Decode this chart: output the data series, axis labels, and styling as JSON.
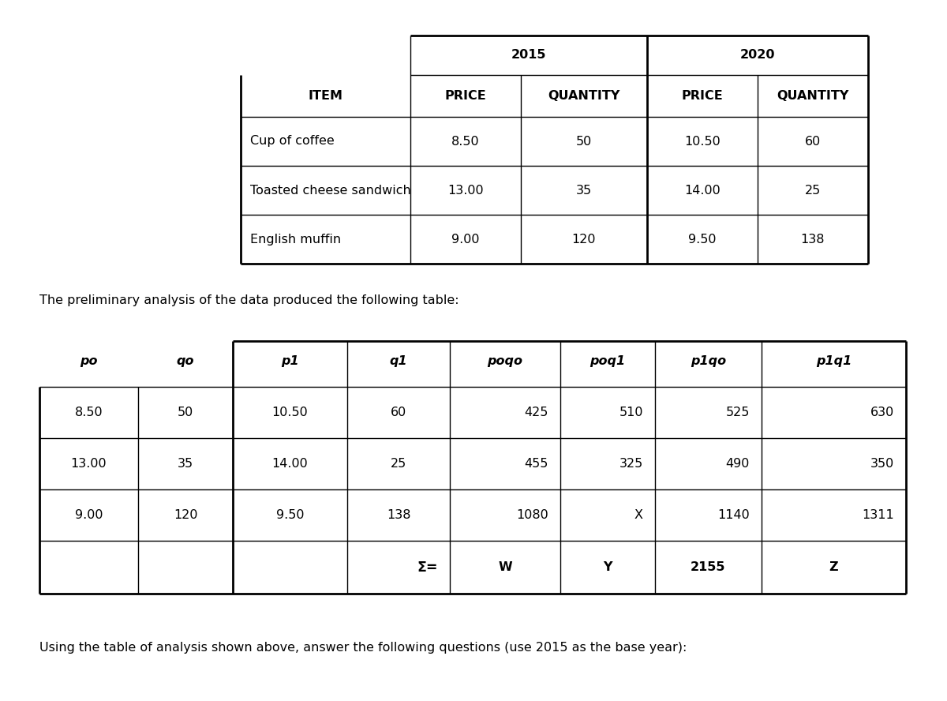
{
  "table1": {
    "year2015": "2015",
    "year2020": "2020",
    "headers": [
      "ITEM",
      "PRICE",
      "QUANTITY",
      "PRICE",
      "QUANTITY"
    ],
    "rows": [
      [
        "Cup of coffee",
        "8.50",
        "50",
        "10.50",
        "60"
      ],
      [
        "Toasted cheese sandwich",
        "13.00",
        "35",
        "14.00",
        "25"
      ],
      [
        "English muffin",
        "9.00",
        "120",
        "9.50",
        "138"
      ]
    ]
  },
  "middle_text": "The preliminary analysis of the data produced the following table:",
  "table2": {
    "headers": [
      "po",
      "qo",
      "p1",
      "q1",
      "poqo",
      "poq1",
      "p1qo",
      "p1q1"
    ],
    "rows": [
      [
        "8.50",
        "50",
        "10.50",
        "60",
        "425",
        "510",
        "525",
        "630"
      ],
      [
        "13.00",
        "35",
        "14.00",
        "25",
        "455",
        "325",
        "490",
        "350"
      ],
      [
        "9.00",
        "120",
        "9.50",
        "138",
        "1080",
        "X",
        "1140",
        "1311"
      ],
      [
        "",
        "",
        "",
        "Σ=",
        "W",
        "Y",
        "2155",
        "Z"
      ]
    ]
  },
  "bottom_text": "Using the table of analysis shown above, answer the following questions (use 2015 as the base year):",
  "bg_color": "#ffffff",
  "text_color": "#000000",
  "line_color": "#000000",
  "font_size": 11.5,
  "header_font_size": 11.5
}
